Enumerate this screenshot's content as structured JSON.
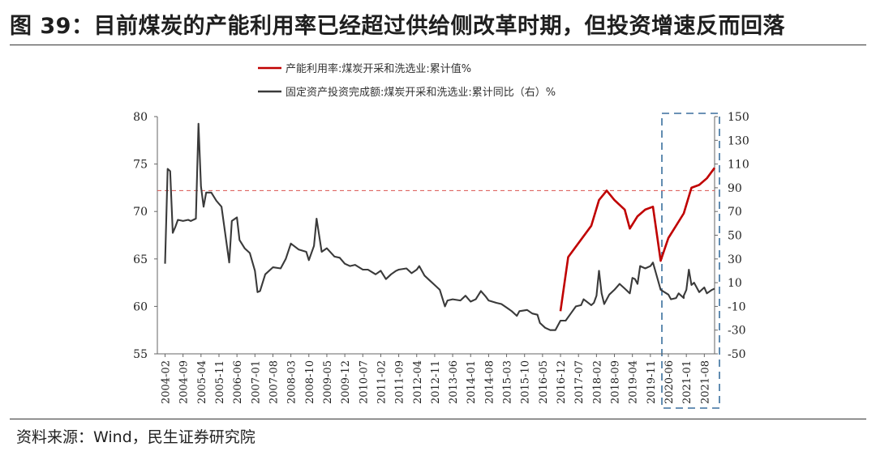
{
  "title": "图 39：目前煤炭的产能利用率已经超过供给侧改革时期，但投资增速反而回落",
  "source": "资料来源：Wind，民生证券研究院",
  "chart_data": {
    "type": "line",
    "legend_placement": "top-center",
    "grid": false,
    "left_axis": {
      "ylim": [
        55,
        80
      ],
      "ticks": [
        "55",
        "60",
        "65",
        "70",
        "75",
        "80"
      ]
    },
    "right_axis": {
      "ylim": [
        -50,
        150
      ],
      "ticks": [
        "-50",
        "-30",
        "-10",
        "10",
        "30",
        "50",
        "70",
        "90",
        "110",
        "130",
        "150"
      ]
    },
    "x_tick_labels": [
      "2004-02",
      "2004-09",
      "2005-04",
      "2005-11",
      "2006-06",
      "2007-01",
      "2007-08",
      "2008-03",
      "2008-10",
      "2009-05",
      "2009-12",
      "2010-07",
      "2011-02",
      "2011-09",
      "2012-04",
      "2012-11",
      "2013-06",
      "2014-01",
      "2014-08",
      "2015-03",
      "2015-10",
      "2016-05",
      "2016-12",
      "2017-07",
      "2018-02",
      "2018-09",
      "2019-04",
      "2019-11",
      "2020-06",
      "2021-01",
      "2021-08"
    ],
    "reference_line": {
      "axis": "left",
      "value": 72.2,
      "color": "#d9534f"
    },
    "highlight_box": {
      "from": "2020-06",
      "to": "2021-08",
      "color": "#3a6f9e"
    },
    "series": [
      {
        "name": "产能利用率:煤炭开采和洗选业:累计值%",
        "axis": "left",
        "color": "#c00000",
        "points": [
          [
            "2016-12",
            59.5
          ],
          [
            "2017-03",
            65.2
          ],
          [
            "2017-12",
            68.5
          ],
          [
            "2018-03",
            71.2
          ],
          [
            "2018-06",
            72.2
          ],
          [
            "2018-09",
            71.2
          ],
          [
            "2019-01",
            70.2
          ],
          [
            "2019-03",
            68.2
          ],
          [
            "2019-06",
            69.5
          ],
          [
            "2019-09",
            70.2
          ],
          [
            "2019-12",
            70.5
          ],
          [
            "2020-03",
            64.8
          ],
          [
            "2020-06",
            67.2
          ],
          [
            "2020-09",
            68.5
          ],
          [
            "2020-12",
            69.8
          ],
          [
            "2021-03",
            72.5
          ],
          [
            "2021-06",
            72.8
          ],
          [
            "2021-09",
            73.5
          ],
          [
            "2021-12",
            74.6
          ]
        ]
      },
      {
        "name": "固定资产投资完成额:煤炭开采和洗选业:累计同比（右）%",
        "axis": "right",
        "color": "#3a3a3a",
        "points": [
          [
            "2004-02",
            26
          ],
          [
            "2004-03",
            106
          ],
          [
            "2004-04",
            104
          ],
          [
            "2004-05",
            52
          ],
          [
            "2004-06",
            57
          ],
          [
            "2004-07",
            63
          ],
          [
            "2004-09",
            62
          ],
          [
            "2004-11",
            63
          ],
          [
            "2004-12",
            62
          ],
          [
            "2005-02",
            64
          ],
          [
            "2005-03",
            144
          ],
          [
            "2005-04",
            91
          ],
          [
            "2005-05",
            74
          ],
          [
            "2005-06",
            86
          ],
          [
            "2005-08",
            86
          ],
          [
            "2005-10",
            79
          ],
          [
            "2005-12",
            74
          ],
          [
            "2006-03",
            27
          ],
          [
            "2006-04",
            62
          ],
          [
            "2006-06",
            65
          ],
          [
            "2006-07",
            46
          ],
          [
            "2006-09",
            39
          ],
          [
            "2006-11",
            35
          ],
          [
            "2007-01",
            20
          ],
          [
            "2007-02",
            2
          ],
          [
            "2007-03",
            3
          ],
          [
            "2007-05",
            17
          ],
          [
            "2007-08",
            23
          ],
          [
            "2007-11",
            22
          ],
          [
            "2008-01",
            30
          ],
          [
            "2008-03",
            43
          ],
          [
            "2008-06",
            38
          ],
          [
            "2008-09",
            36
          ],
          [
            "2008-10",
            29
          ],
          [
            "2008-12",
            41
          ],
          [
            "2009-01",
            64
          ],
          [
            "2009-03",
            36
          ],
          [
            "2009-05",
            39
          ],
          [
            "2009-08",
            32
          ],
          [
            "2009-10",
            31
          ],
          [
            "2009-12",
            26
          ],
          [
            "2010-02",
            24
          ],
          [
            "2010-04",
            25
          ],
          [
            "2010-07",
            21
          ],
          [
            "2010-09",
            21
          ],
          [
            "2010-12",
            17
          ],
          [
            "2011-02",
            20
          ],
          [
            "2011-04",
            13
          ],
          [
            "2011-06",
            17
          ],
          [
            "2011-08",
            20
          ],
          [
            "2011-09",
            21
          ],
          [
            "2011-12",
            22
          ],
          [
            "2012-02",
            18
          ],
          [
            "2012-04",
            21
          ],
          [
            "2012-05",
            24
          ],
          [
            "2012-07",
            16
          ],
          [
            "2012-09",
            12
          ],
          [
            "2012-11",
            8
          ],
          [
            "2013-01",
            4
          ],
          [
            "2013-03",
            -10
          ],
          [
            "2013-04",
            -5
          ],
          [
            "2013-06",
            -4
          ],
          [
            "2013-09",
            -5
          ],
          [
            "2013-11",
            -1
          ],
          [
            "2014-01",
            -6
          ],
          [
            "2014-03",
            -4
          ],
          [
            "2014-05",
            3
          ],
          [
            "2014-07",
            -2
          ],
          [
            "2014-08",
            -5
          ],
          [
            "2014-11",
            -7
          ],
          [
            "2015-01",
            -8
          ],
          [
            "2015-03",
            -11
          ],
          [
            "2015-05",
            -14
          ],
          [
            "2015-07",
            -18
          ],
          [
            "2015-08",
            -14
          ],
          [
            "2015-11",
            -13
          ],
          [
            "2016-01",
            -16
          ],
          [
            "2016-03",
            -17
          ],
          [
            "2016-04",
            -24
          ],
          [
            "2016-06",
            -28
          ],
          [
            "2016-08",
            -30
          ],
          [
            "2016-10",
            -30
          ],
          [
            "2016-12",
            -22
          ],
          [
            "2017-02",
            -22
          ],
          [
            "2017-04",
            -16
          ],
          [
            "2017-06",
            -10
          ],
          [
            "2017-08",
            -9
          ],
          [
            "2017-09",
            -4
          ],
          [
            "2017-12",
            -9
          ],
          [
            "2018-01",
            -7
          ],
          [
            "2018-02",
            -1
          ],
          [
            "2018-03",
            20
          ],
          [
            "2018-04",
            1
          ],
          [
            "2018-05",
            -8
          ],
          [
            "2018-07",
            0
          ],
          [
            "2018-09",
            4
          ],
          [
            "2018-11",
            9
          ],
          [
            "2019-01",
            5
          ],
          [
            "2019-03",
            1
          ],
          [
            "2019-04",
            14
          ],
          [
            "2019-05",
            13
          ],
          [
            "2019-06",
            9
          ],
          [
            "2019-07",
            24
          ],
          [
            "2019-09",
            22
          ],
          [
            "2019-11",
            24
          ],
          [
            "2019-12",
            27
          ],
          [
            "2020-03",
            4
          ],
          [
            "2020-06",
            0
          ],
          [
            "2020-07",
            -4
          ],
          [
            "2020-09",
            -3
          ],
          [
            "2020-10",
            1
          ],
          [
            "2020-12",
            -3
          ],
          [
            "2020-12",
            -1
          ],
          [
            "2021-01",
            4
          ],
          [
            "2021-02",
            21
          ],
          [
            "2021-03",
            8
          ],
          [
            "2021-04",
            10
          ],
          [
            "2021-06",
            2
          ],
          [
            "2021-08",
            6
          ],
          [
            "2021-09",
            1
          ],
          [
            "2021-11",
            4
          ],
          [
            "2021-12",
            5
          ]
        ]
      }
    ]
  }
}
